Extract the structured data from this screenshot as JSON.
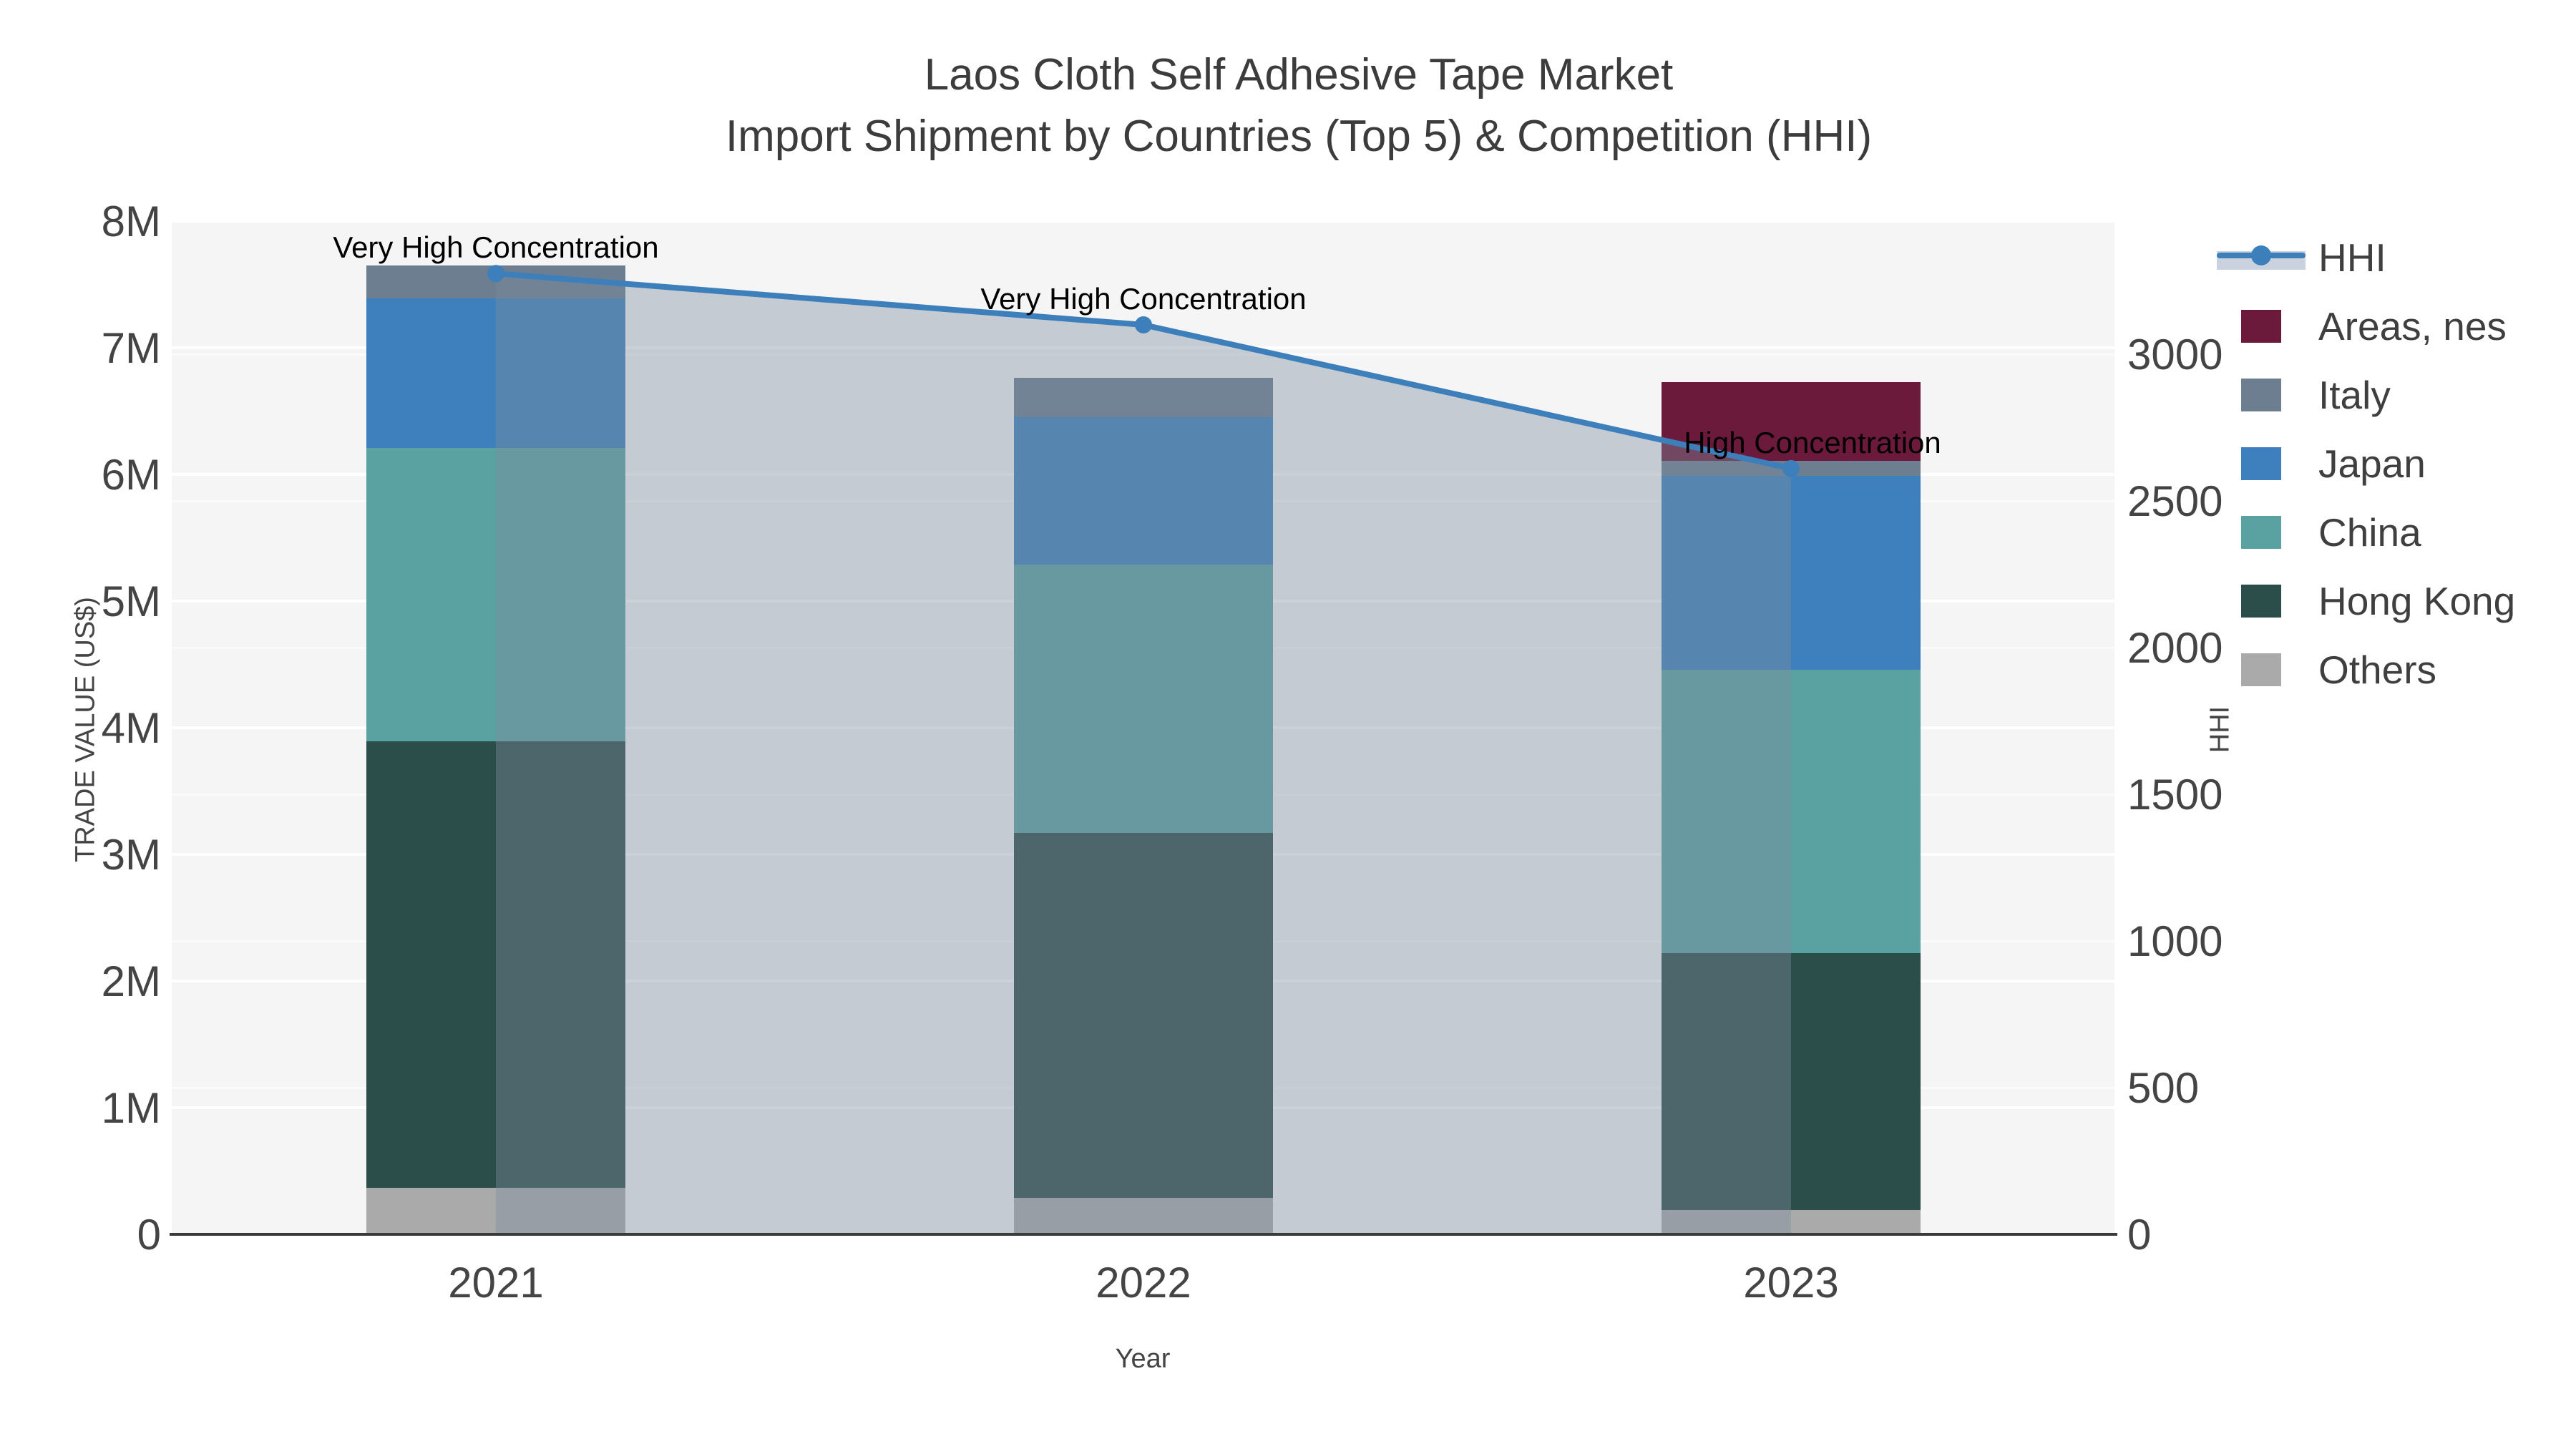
{
  "title": "Laos Cloth Self Adhesive Tape Market",
  "subtitle": "Import Shipment by Countries (Top 5) & Competition (HHI)",
  "colors": {
    "others": "#aaaaaa",
    "hong_kong": "#2c4e4a",
    "china": "#5aa1a2",
    "japan": "#3d80bd",
    "italy": "#6d7e91",
    "areas_nes": "#6b1a3b",
    "hhi_line": "#3c7fbb",
    "area_fill": "rgba(126,140,158,0.40)",
    "plot_bg": "#f5f5f5",
    "axis_text": "#444444",
    "title_text": "#3c3c3c"
  },
  "chart_data": {
    "type": "bar",
    "subtype": "stacked-bars-with-line",
    "categories": [
      "2021",
      "2022",
      "2023"
    ],
    "series": [
      {
        "name": "Others",
        "key": "others",
        "values": [
          0.37,
          0.29,
          0.19
        ]
      },
      {
        "name": "Hong Kong",
        "key": "hong_kong",
        "values": [
          3.52,
          2.88,
          2.03
        ]
      },
      {
        "name": "China",
        "key": "china",
        "values": [
          2.32,
          2.12,
          2.24
        ]
      },
      {
        "name": "Japan",
        "key": "japan",
        "values": [
          1.18,
          1.16,
          1.53
        ]
      },
      {
        "name": "Italy",
        "key": "italy",
        "values": [
          0.26,
          0.31,
          0.12
        ]
      },
      {
        "name": "Areas, nes",
        "key": "areas_nes",
        "values": [
          0.0,
          0.0,
          0.62
        ]
      }
    ],
    "bar_totals_M": [
      7.65,
      6.76,
      6.73
    ],
    "line_series": {
      "name": "HHI",
      "values": [
        3275,
        3100,
        2610
      ],
      "fill": "tozeroy"
    },
    "annotations": [
      "Very High Concentration",
      "Very High Concentration",
      "High Concentration"
    ],
    "title": "Laos Cloth Self Adhesive Tape Market",
    "subtitle": "Import Shipment by Countries (Top 5) & Competition (HHI)",
    "xlabel": "Year",
    "left_axis": {
      "title": "TRADE VALUE (US$)",
      "tick_labels": [
        "0",
        "1M",
        "2M",
        "3M",
        "4M",
        "5M",
        "6M",
        "7M",
        "8M"
      ],
      "range_M": [
        0,
        8
      ]
    },
    "right_axis": {
      "title": "HHI",
      "tick_labels": [
        "0",
        "500",
        "1000",
        "1500",
        "2000",
        "2500",
        "3000"
      ],
      "tick_step": 500,
      "range": [
        0,
        3454
      ]
    },
    "grid": true,
    "legend_position": "right-top"
  },
  "legend": {
    "items": [
      {
        "label": "HHI",
        "type": "line"
      },
      {
        "label": "Areas, nes",
        "type": "swatch",
        "key": "areas_nes"
      },
      {
        "label": "Italy",
        "type": "swatch",
        "key": "italy"
      },
      {
        "label": "Japan",
        "type": "swatch",
        "key": "japan"
      },
      {
        "label": "China",
        "type": "swatch",
        "key": "china"
      },
      {
        "label": "Hong Kong",
        "type": "swatch",
        "key": "hong_kong"
      },
      {
        "label": "Others",
        "type": "swatch",
        "key": "others"
      }
    ]
  }
}
